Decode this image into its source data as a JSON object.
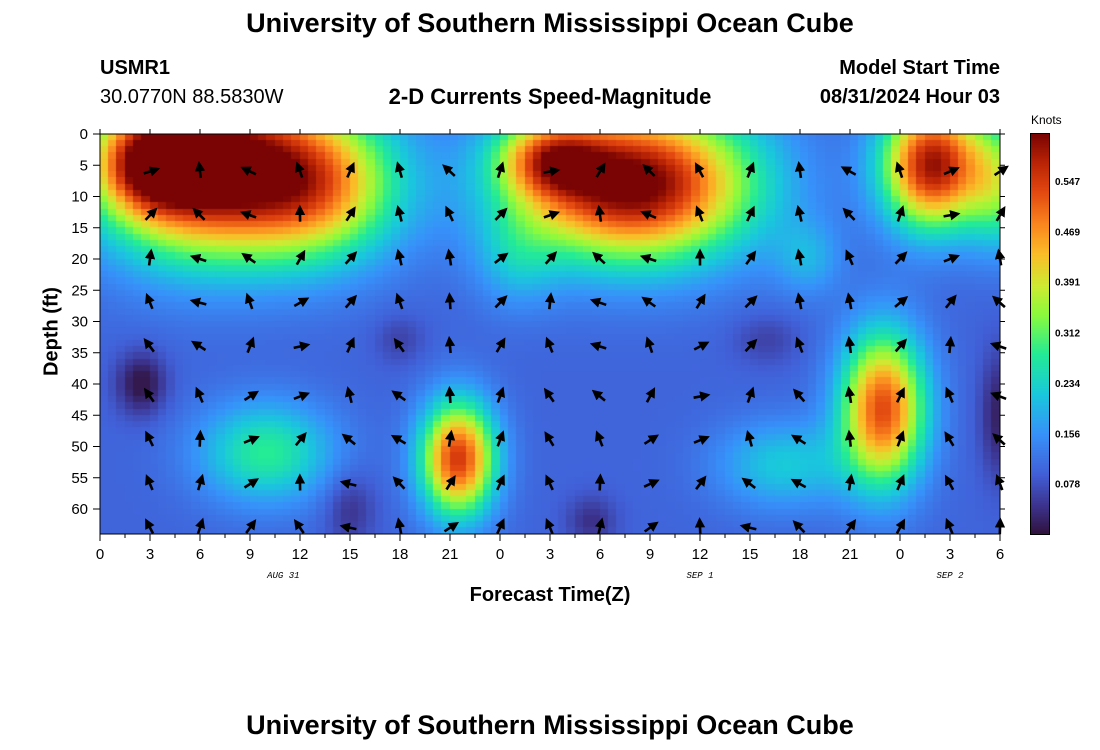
{
  "titles": {
    "main": "University of Southern Mississippi Ocean Cube",
    "bottom": "University of Southern Mississippi Ocean Cube"
  },
  "station": {
    "id": "USMR1",
    "coords": "30.0770N  88.5830W"
  },
  "model": {
    "label": "Model Start Time",
    "time": "08/31/2024 Hour 03"
  },
  "chart_data": {
    "type": "heatmap",
    "title": "2-D Currents Speed-Magnitude",
    "xlabel": "Forecast Time(Z)",
    "ylabel": "Depth (ft)",
    "x_hours_range": [
      0,
      54
    ],
    "y_range": [
      0,
      64
    ],
    "x_tick_labels": [
      "0",
      "3",
      "6",
      "9",
      "12",
      "15",
      "18",
      "21",
      "0",
      "3",
      "6",
      "9",
      "12",
      "15",
      "18",
      "21",
      "0",
      "3",
      "6"
    ],
    "y_tick_labels": [
      "0",
      "5",
      "10",
      "15",
      "20",
      "25",
      "30",
      "35",
      "40",
      "45",
      "50",
      "55",
      "60"
    ],
    "date_labels": [
      {
        "text": "AUG 31",
        "hour": 11
      },
      {
        "text": "SEP 1",
        "hour": 36
      },
      {
        "text": "SEP 2",
        "hour": 51
      }
    ],
    "colorbar": {
      "units": "Knots",
      "range": [
        0.0,
        0.62
      ],
      "ticks": [
        "0.547",
        "0.469",
        "0.391",
        "0.312",
        "0.234",
        "0.156",
        "0.078"
      ],
      "tick_values": [
        0.547,
        0.469,
        0.391,
        0.312,
        0.234,
        0.156,
        0.078
      ]
    },
    "speed_blobs": [
      {
        "h": 6,
        "d": 5,
        "sh": 6,
        "sd": 14,
        "a": 0.55
      },
      {
        "h": 13,
        "d": 8,
        "sh": 5,
        "sd": 12,
        "a": 0.35
      },
      {
        "h": 3,
        "d": 5,
        "sh": 3,
        "sd": 7,
        "a": 0.25
      },
      {
        "h": 32,
        "d": 8,
        "sh": 7,
        "sd": 12,
        "a": 0.55
      },
      {
        "h": 27,
        "d": 4,
        "sh": 3,
        "sd": 6,
        "a": 0.25
      },
      {
        "h": 50,
        "d": 5,
        "sh": 3,
        "sd": 10,
        "a": 0.5
      },
      {
        "h": 54,
        "d": 8,
        "sh": 2,
        "sd": 10,
        "a": 0.2
      },
      {
        "h": 21.5,
        "d": 52,
        "sh": 2.2,
        "sd": 9,
        "a": 0.45
      },
      {
        "h": 47,
        "d": 44,
        "sh": 2.5,
        "sd": 12,
        "a": 0.43
      },
      {
        "h": 10,
        "d": 51,
        "sh": 4,
        "sd": 8,
        "a": 0.18
      },
      {
        "h": 41,
        "d": 53,
        "sh": 4,
        "sd": 7,
        "a": 0.12
      },
      {
        "h": 25,
        "d": 20,
        "sh": 2.5,
        "sd": 8,
        "a": 0.08
      },
      {
        "h": 42.5,
        "d": 20,
        "sh": 2,
        "sd": 6,
        "a": 0.08
      }
    ],
    "low_blobs": [
      {
        "h": 2.5,
        "d": 40,
        "sh": 1.5,
        "sd": 5,
        "a": 0.1
      },
      {
        "h": 15,
        "d": 60,
        "sh": 1.5,
        "sd": 6,
        "a": 0.06
      },
      {
        "h": 29.5,
        "d": 62,
        "sh": 1.5,
        "sd": 4,
        "a": 0.06
      },
      {
        "h": 54,
        "d": 45,
        "sh": 1.2,
        "sd": 10,
        "a": 0.08
      },
      {
        "h": 18,
        "d": 33,
        "sh": 1.5,
        "sd": 4,
        "a": 0.04
      },
      {
        "h": 40,
        "d": 33,
        "sh": 2,
        "sd": 4,
        "a": 0.04
      }
    ],
    "base_speed": 0.1,
    "vector_hours": [
      3,
      6,
      9,
      12,
      15,
      18,
      21,
      24,
      27,
      30,
      33,
      36,
      39,
      42,
      45,
      48,
      51,
      54
    ],
    "vector_depths": [
      6,
      13,
      20,
      27,
      34,
      42,
      49,
      56,
      63
    ]
  }
}
